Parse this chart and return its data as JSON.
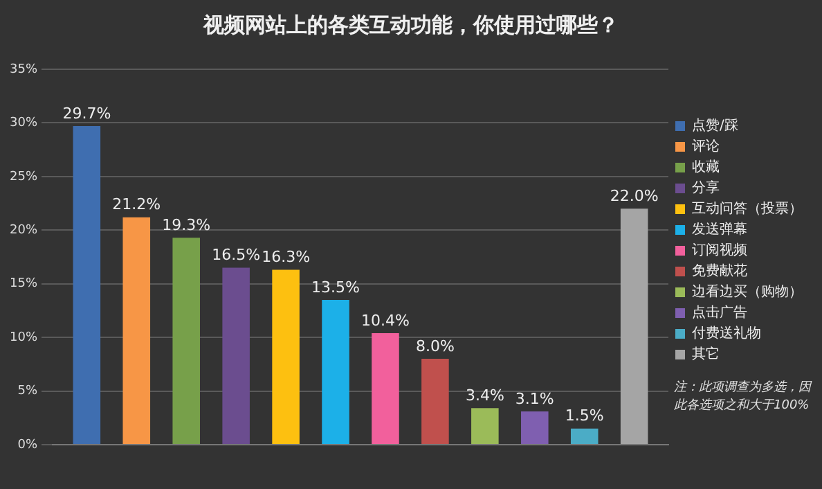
{
  "chart_data": {
    "type": "bar",
    "title": "视频网站上的各类互动功能，你使用过哪些？",
    "categories": [
      null
    ],
    "series": [
      {
        "name": "点赞/踩",
        "color": "#3f6eb0",
        "values": [
          29.7
        ],
        "value_labels": [
          "29.7%"
        ]
      },
      {
        "name": "评论",
        "color": "#f79646",
        "values": [
          21.2
        ],
        "value_labels": [
          "21.2%"
        ]
      },
      {
        "name": "收藏",
        "color": "#77a04a",
        "values": [
          19.3
        ],
        "value_labels": [
          "19.3%"
        ]
      },
      {
        "name": "分享",
        "color": "#6b4d8f",
        "values": [
          16.5
        ],
        "value_labels": [
          "16.5%"
        ]
      },
      {
        "name": "互动问答（投票）",
        "color": "#fdc010",
        "values": [
          16.3
        ],
        "value_labels": [
          "16.3%"
        ]
      },
      {
        "name": "发送弹幕",
        "color": "#1cb0e8",
        "values": [
          13.5
        ],
        "value_labels": [
          "13.5%"
        ]
      },
      {
        "name": "订阅视频",
        "color": "#f2609c",
        "values": [
          10.4
        ],
        "value_labels": [
          "10.4%"
        ]
      },
      {
        "name": "免费献花",
        "color": "#c0504d",
        "values": [
          8.0
        ],
        "value_labels": [
          "8.0%"
        ]
      },
      {
        "name": "边看边买（购物）",
        "color": "#9bbb59",
        "values": [
          3.4
        ],
        "value_labels": [
          "3.4%"
        ]
      },
      {
        "name": "点击广告",
        "color": "#7f5fb0",
        "values": [
          3.1
        ],
        "value_labels": [
          "3.1%"
        ]
      },
      {
        "name": "付费送礼物",
        "color": "#4bacc6",
        "values": [
          1.5
        ],
        "value_labels": [
          "1.5%"
        ]
      },
      {
        "name": "其它",
        "color": "#a5a5a5",
        "values": [
          22.0
        ],
        "value_labels": [
          "22.0%"
        ]
      }
    ],
    "ylim": [
      0,
      35
    ],
    "yticks": [
      {
        "value": 0,
        "label": "0%"
      },
      {
        "value": 5,
        "label": "5%"
      },
      {
        "value": 10,
        "label": "10%"
      },
      {
        "value": 15,
        "label": "15%"
      },
      {
        "value": 20,
        "label": "20%"
      },
      {
        "value": 25,
        "label": "25%"
      },
      {
        "value": 30,
        "label": "30%"
      },
      {
        "value": 35,
        "label": "35%"
      }
    ],
    "grid": "y",
    "legend": "right",
    "annotations": [
      "注：此项调查为多选，因此各选项之和大于100%"
    ]
  }
}
